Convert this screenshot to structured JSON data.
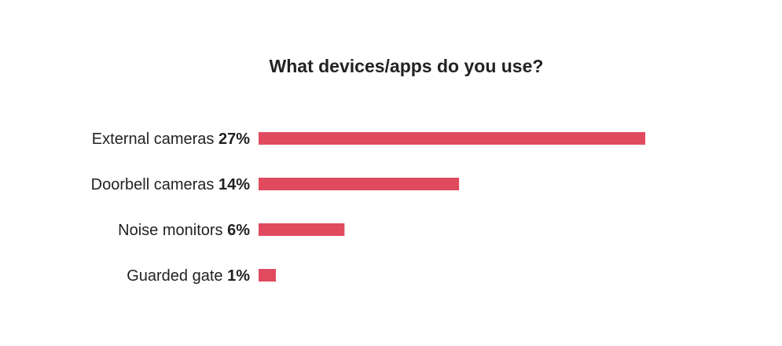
{
  "chart_data": {
    "type": "bar",
    "orientation": "horizontal",
    "title": "What devices/apps do you use?",
    "xlabel": "",
    "ylabel": "",
    "categories": [
      "External cameras",
      "Doorbell cameras",
      "Noise monitors",
      "Guarded gate"
    ],
    "values": [
      27,
      14,
      6,
      1
    ],
    "value_labels": [
      "27%",
      "14%",
      "6%",
      "1%"
    ],
    "unit": "%",
    "grid": false,
    "legend": "none",
    "bar_color": "#e04a5f"
  }
}
